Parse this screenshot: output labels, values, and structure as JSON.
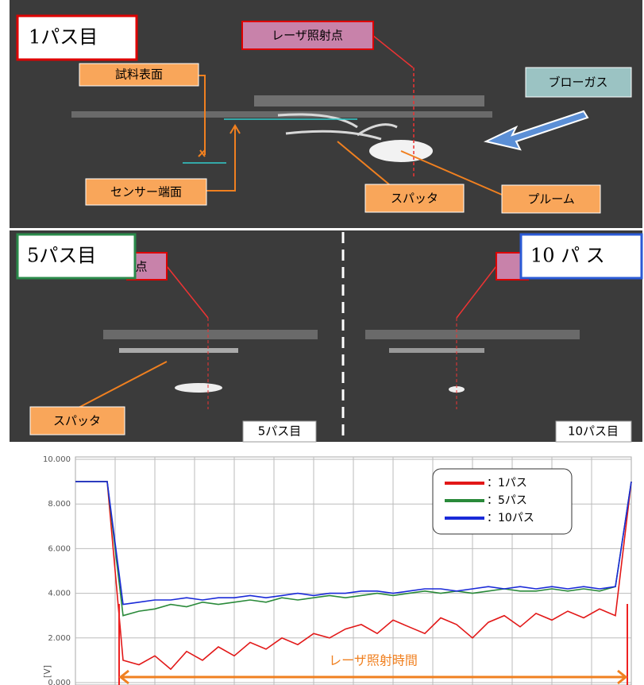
{
  "panel1": {
    "pass_label": "1パス目",
    "laser_point": "レーザ照射点",
    "sample_surface": "試料表面",
    "blow_gas": "ブローガス",
    "sensor_face": "センサー端面",
    "spatter": "スパッタ",
    "plume": "プルーム"
  },
  "panel2": {
    "laser_point_fragment": "点",
    "pass5_label": "5パス目",
    "pass10_label": "10 パ ス",
    "spatter": "スパッタ",
    "tag5": "5パス目",
    "tag10": "10パス目"
  },
  "chart_data": {
    "type": "line",
    "y_label": "[V]",
    "annotation": "レーザ照射時間",
    "ylim": [
      0,
      10
    ],
    "yticks": [
      {
        "value": 10,
        "label": "10.000"
      },
      {
        "value": 8,
        "label": "8.000"
      },
      {
        "value": 6,
        "label": "6.000"
      },
      {
        "value": 4,
        "label": "4.000"
      },
      {
        "value": 2,
        "label": "2.000"
      },
      {
        "value": 0,
        "label": "0.000"
      }
    ],
    "grid": true,
    "series": [
      {
        "name": "：1パス",
        "color": "#e21818",
        "values": [
          9,
          9,
          9,
          1.0,
          0.8,
          1.2,
          0.6,
          1.4,
          1.0,
          1.6,
          1.2,
          1.8,
          1.5,
          2.0,
          1.7,
          2.2,
          2.0,
          2.4,
          2.6,
          2.2,
          2.8,
          2.5,
          2.2,
          2.9,
          2.6,
          2.0,
          2.7,
          3.0,
          2.5,
          3.1,
          2.8,
          3.2,
          2.9,
          3.3,
          3.0,
          9
        ]
      },
      {
        "name": "：5パス",
        "color": "#2a8a3a",
        "values": [
          9,
          9,
          9,
          3.0,
          3.2,
          3.3,
          3.5,
          3.4,
          3.6,
          3.5,
          3.6,
          3.7,
          3.6,
          3.8,
          3.7,
          3.8,
          3.9,
          3.8,
          3.9,
          4.0,
          3.9,
          4.0,
          4.1,
          4.0,
          4.1,
          4.0,
          4.1,
          4.2,
          4.1,
          4.1,
          4.2,
          4.1,
          4.2,
          4.1,
          4.3,
          9
        ]
      },
      {
        "name": "：10パス",
        "color": "#1a2ad8",
        "values": [
          9,
          9,
          9,
          3.5,
          3.6,
          3.7,
          3.7,
          3.8,
          3.7,
          3.8,
          3.8,
          3.9,
          3.8,
          3.9,
          4.0,
          3.9,
          4.0,
          4.0,
          4.1,
          4.1,
          4.0,
          4.1,
          4.2,
          4.2,
          4.1,
          4.2,
          4.3,
          4.2,
          4.3,
          4.2,
          4.3,
          4.2,
          4.3,
          4.2,
          4.3,
          9
        ]
      }
    ]
  }
}
